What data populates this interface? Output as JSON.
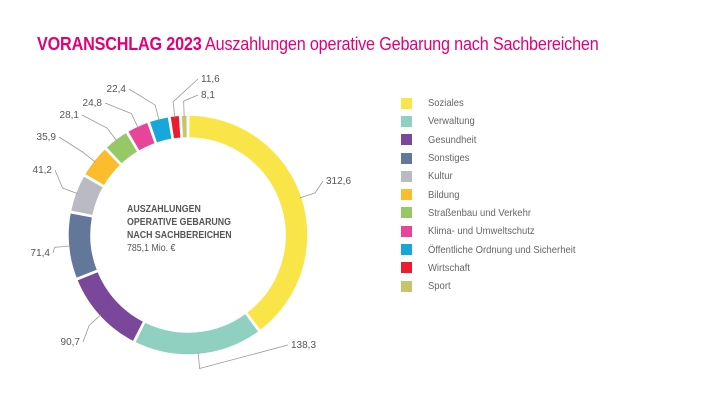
{
  "title": {
    "bold": "VORANSCHLAG 2023",
    "rest": "Auszahlungen operative Gebarung nach Sachbereichen"
  },
  "center": {
    "line1": "AUSZAHLUNGEN",
    "line2": "OPERATIVE GEBARUNG",
    "line3": "NACH SACHBEREICHEN",
    "total": "785,1 Mio. €"
  },
  "chart_data": {
    "type": "pie",
    "variant": "donut",
    "title": "VORANSCHLAG 2023 Auszahlungen operative Gebarung nach Sachbereichen",
    "unit": "Mio. €",
    "total": 785.1,
    "legend_position": "right",
    "categories": [
      "Soziales",
      "Verwaltung",
      "Gesundheit",
      "Sonstiges",
      "Kultur",
      "Bildung",
      "Straßenbau und Verkehr",
      "Klima- und Umweltschutz",
      "Öffentliche Ordnung und Sicherheit",
      "Wirtschaft",
      "Sport"
    ],
    "values": [
      312.6,
      138.3,
      90.7,
      71.4,
      41.2,
      35.9,
      28.1,
      24.8,
      22.4,
      11.6,
      8.1
    ],
    "labels": [
      "312,6",
      "138,3",
      "90,7",
      "71,4",
      "41,2",
      "35,9",
      "28,1",
      "24,8",
      "22,4",
      "11,6",
      "8,1"
    ],
    "colors": [
      "#f9e547",
      "#8fd0c1",
      "#7a479b",
      "#62779a",
      "#b9bac3",
      "#fbbd2d",
      "#97c866",
      "#e7449a",
      "#17a7dc",
      "#ec1c2f",
      "#c6c56c"
    ]
  }
}
